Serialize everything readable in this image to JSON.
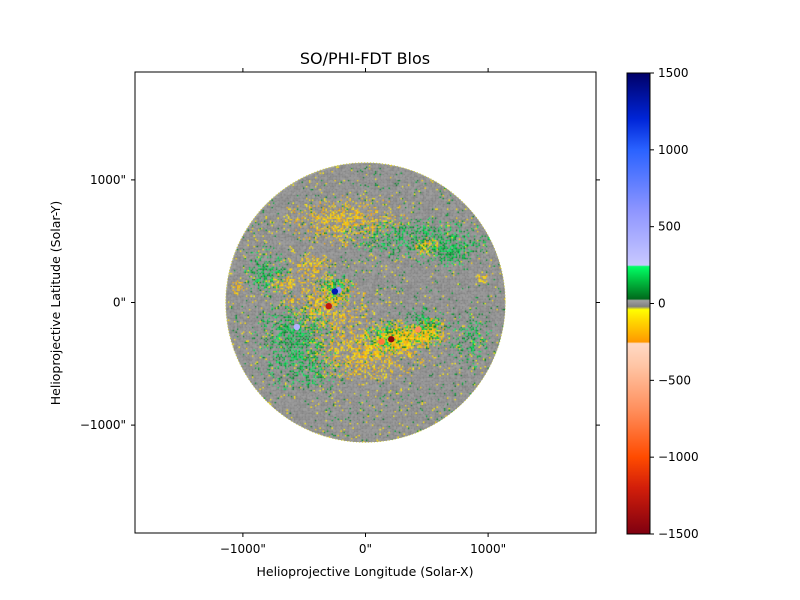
{
  "chart_data": {
    "type": "heatmap",
    "title": "SO/PHI-FDT Blos",
    "xlabel": "Helioprojective Longitude (Solar-X)",
    "ylabel": "Helioprojective Latitude (Solar-Y)",
    "xlim": [
      -1880,
      1880
    ],
    "ylim": [
      -1880,
      1880
    ],
    "x_ticks": [
      {
        "value": -1000,
        "label": "−1000\""
      },
      {
        "value": 0,
        "label": "0\""
      },
      {
        "value": 1000,
        "label": "1000\""
      }
    ],
    "y_ticks": [
      {
        "value": 1000,
        "label": "1000\""
      },
      {
        "value": 0,
        "label": "0\""
      },
      {
        "value": -1000,
        "label": "−1000\""
      }
    ],
    "disk": {
      "center_x": 0,
      "center_y": 0,
      "radius": 1140
    },
    "colorbar": {
      "range": [
        -1500,
        1500
      ],
      "ticks": [
        {
          "value": 1500,
          "label": "1500"
        },
        {
          "value": 1000,
          "label": "1000"
        },
        {
          "value": 500,
          "label": "500"
        },
        {
          "value": 0,
          "label": "0"
        },
        {
          "value": -500,
          "label": "−500"
        },
        {
          "value": -1000,
          "label": "−1000"
        },
        {
          "value": -1500,
          "label": "−1500"
        }
      ],
      "stops": [
        {
          "value": -1500,
          "color": "#7f0010"
        },
        {
          "value": -1200,
          "color": "#d21e0a"
        },
        {
          "value": -1000,
          "color": "#ff4b00"
        },
        {
          "value": -700,
          "color": "#ff8d5a"
        },
        {
          "value": -400,
          "color": "#ffc6a6"
        },
        {
          "value": -260,
          "color": "#ffd9c4"
        },
        {
          "value": -250,
          "color": "#ff9900"
        },
        {
          "value": -120,
          "color": "#ffd400"
        },
        {
          "value": -40,
          "color": "#ffff00"
        },
        {
          "value": -20,
          "color": "#808080"
        },
        {
          "value": 20,
          "color": "#a0a0a0"
        },
        {
          "value": 30,
          "color": "#006a1c"
        },
        {
          "value": 150,
          "color": "#00c040"
        },
        {
          "value": 240,
          "color": "#00ff66"
        },
        {
          "value": 250,
          "color": "#c8c8ff"
        },
        {
          "value": 600,
          "color": "#8f96ff"
        },
        {
          "value": 1000,
          "color": "#2a62ff"
        },
        {
          "value": 1200,
          "color": "#0025d8"
        },
        {
          "value": 1500,
          "color": "#000068"
        }
      ]
    },
    "regions": [
      {
        "polarity": "negative",
        "x": -180,
        "y": 680,
        "rx": 420,
        "ry": 170,
        "intensity": 0.45
      },
      {
        "polarity": "negative",
        "x": -450,
        "y": 300,
        "rx": 160,
        "ry": 90,
        "intensity": 0.5
      },
      {
        "polarity": "negative",
        "x": -650,
        "y": 160,
        "rx": 110,
        "ry": 80,
        "intensity": 0.55
      },
      {
        "polarity": "negative",
        "x": -330,
        "y": -10,
        "rx": 280,
        "ry": 200,
        "intensity": 0.5
      },
      {
        "polarity": "negative",
        "x": 20,
        "y": -380,
        "rx": 430,
        "ry": 230,
        "intensity": 0.5
      },
      {
        "polarity": "negative",
        "x": 300,
        "y": -280,
        "rx": 150,
        "ry": 110,
        "intensity": 0.7
      },
      {
        "polarity": "negative",
        "x": 520,
        "y": -250,
        "rx": 120,
        "ry": 110,
        "intensity": 0.7
      },
      {
        "polarity": "negative",
        "x": 480,
        "y": 470,
        "rx": 100,
        "ry": 70,
        "intensity": 0.6
      },
      {
        "polarity": "negative",
        "x": -1050,
        "y": 130,
        "rx": 50,
        "ry": 60,
        "intensity": 0.6
      },
      {
        "polarity": "negative",
        "x": 950,
        "y": 210,
        "rx": 50,
        "ry": 50,
        "intensity": 0.5
      },
      {
        "polarity": "positive",
        "x": 450,
        "y": 520,
        "rx": 520,
        "ry": 150,
        "intensity": 0.45
      },
      {
        "polarity": "positive",
        "x": 700,
        "y": 400,
        "rx": 150,
        "ry": 90,
        "intensity": 0.55
      },
      {
        "polarity": "positive",
        "x": -820,
        "y": 260,
        "rx": 150,
        "ry": 180,
        "intensity": 0.5
      },
      {
        "polarity": "positive",
        "x": -600,
        "y": -260,
        "rx": 280,
        "ry": 220,
        "intensity": 0.55
      },
      {
        "polarity": "positive",
        "x": -250,
        "y": 120,
        "rx": 140,
        "ry": 110,
        "intensity": 0.55
      },
      {
        "polarity": "positive",
        "x": 170,
        "y": -280,
        "rx": 170,
        "ry": 120,
        "intensity": 0.6
      },
      {
        "polarity": "positive",
        "x": 480,
        "y": -200,
        "rx": 160,
        "ry": 140,
        "intensity": 0.55
      },
      {
        "polarity": "positive",
        "x": -500,
        "y": -550,
        "rx": 300,
        "ry": 150,
        "intensity": 0.4
      },
      {
        "polarity": "positive",
        "x": 850,
        "y": -300,
        "rx": 150,
        "ry": 180,
        "intensity": 0.4
      }
    ],
    "sunspots": [
      {
        "x": 210,
        "y": -300,
        "value": -1450
      },
      {
        "x": -300,
        "y": -30,
        "value": -1250
      },
      {
        "x": 130,
        "y": -320,
        "value": -800
      },
      {
        "x": 430,
        "y": -220,
        "value": -700
      },
      {
        "x": -560,
        "y": -200,
        "value": 400
      },
      {
        "x": -220,
        "y": 100,
        "value": 600
      },
      {
        "x": -250,
        "y": 90,
        "value": 1300
      }
    ]
  }
}
